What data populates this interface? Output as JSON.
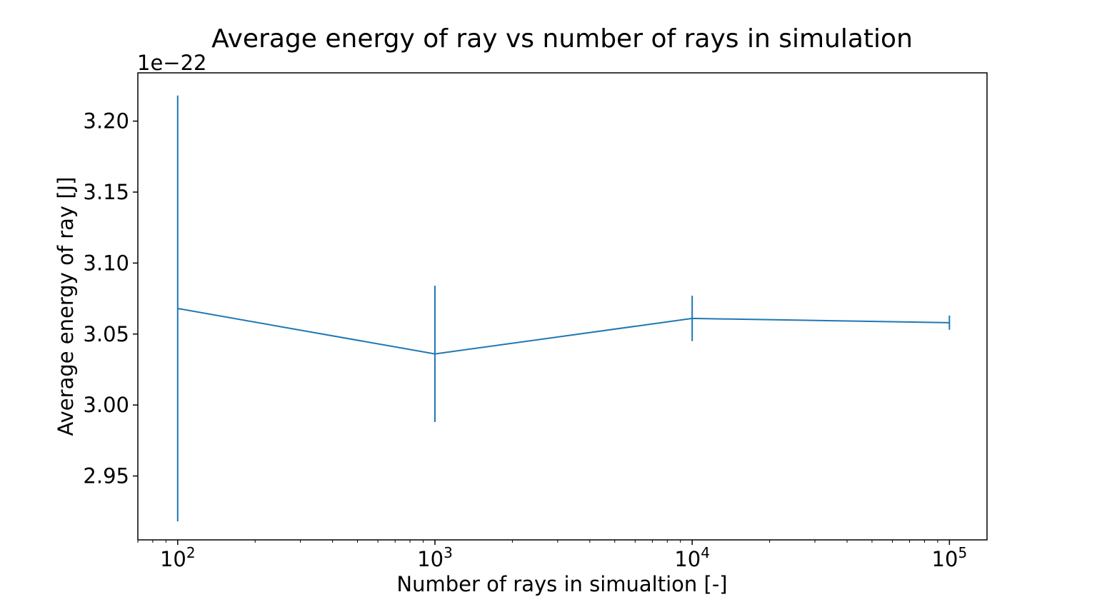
{
  "chart_data": {
    "type": "line",
    "title": "Average energy of ray vs number of rays in simulation",
    "xlabel": "Number of rays in simualtion [-]",
    "ylabel": "Average energy of ray [J]",
    "x_scale": "log",
    "xlim": [
      70,
      140000
    ],
    "ylim": [
      2.905,
      3.234
    ],
    "y_offset_label": "1e−22",
    "x_ticks": [
      {
        "value": 100,
        "base": "10",
        "exp": "2"
      },
      {
        "value": 1000,
        "base": "10",
        "exp": "3"
      },
      {
        "value": 10000,
        "base": "10",
        "exp": "4"
      },
      {
        "value": 100000,
        "base": "10",
        "exp": "5"
      }
    ],
    "y_ticks": [
      {
        "value": 2.95,
        "label": "2.95"
      },
      {
        "value": 3.0,
        "label": "3.00"
      },
      {
        "value": 3.05,
        "label": "3.05"
      },
      {
        "value": 3.1,
        "label": "3.10"
      },
      {
        "value": 3.15,
        "label": "3.15"
      },
      {
        "value": 3.2,
        "label": "3.20"
      }
    ],
    "grid": false,
    "series": [
      {
        "color": "#1f77b4",
        "x": [
          100,
          1000,
          10000,
          100000
        ],
        "y": [
          3.068,
          3.036,
          3.061,
          3.058
        ],
        "yerr": [
          0.15,
          0.048,
          0.016,
          0.005
        ]
      }
    ]
  }
}
